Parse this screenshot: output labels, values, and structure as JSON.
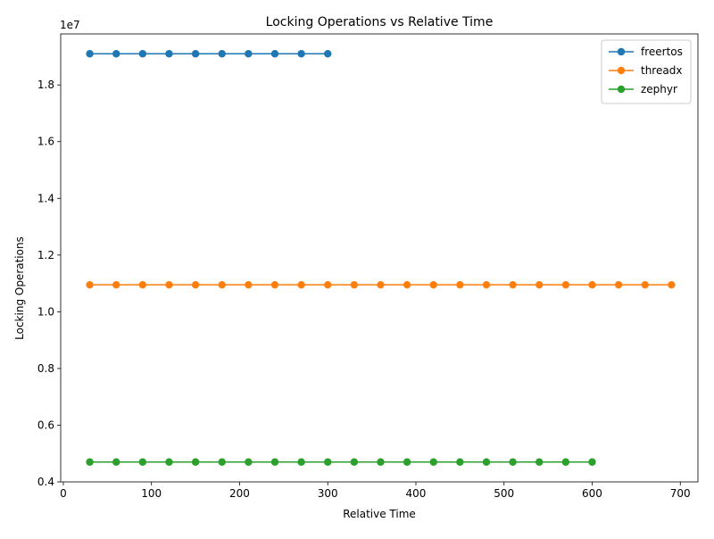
{
  "chart_data": {
    "type": "line",
    "title": "Locking Operations vs Relative Time",
    "xlabel": "Relative Time",
    "ylabel": "Locking Operations",
    "y_offset_label": "1e7",
    "xlim": [
      -3,
      720
    ],
    "ylim": [
      4000000,
      19800000
    ],
    "xticks": [
      0,
      100,
      200,
      300,
      400,
      500,
      600,
      700
    ],
    "yticks": [
      4000000,
      6000000,
      8000000,
      10000000,
      12000000,
      14000000,
      16000000,
      18000000
    ],
    "ytick_labels": [
      "0.4",
      "0.6",
      "0.8",
      "1.0",
      "1.2",
      "1.4",
      "1.6",
      "1.8"
    ],
    "grid": false,
    "legend_position": "top-right",
    "series": [
      {
        "name": "freertos",
        "color": "#1f77b4",
        "x": [
          30,
          60,
          90,
          120,
          150,
          180,
          210,
          240,
          270,
          300
        ],
        "values": [
          19100000,
          19100000,
          19100000,
          19100000,
          19100000,
          19100000,
          19100000,
          19100000,
          19100000,
          19100000
        ]
      },
      {
        "name": "threadx",
        "color": "#ff7f0e",
        "x": [
          30,
          60,
          90,
          120,
          150,
          180,
          210,
          240,
          270,
          300,
          330,
          360,
          390,
          420,
          450,
          480,
          510,
          540,
          570,
          600,
          630,
          660,
          690
        ],
        "values": [
          10950000,
          10950000,
          10950000,
          10950000,
          10950000,
          10950000,
          10950000,
          10950000,
          10950000,
          10950000,
          10950000,
          10950000,
          10950000,
          10950000,
          10950000,
          10950000,
          10950000,
          10950000,
          10950000,
          10950000,
          10950000,
          10950000,
          10950000
        ]
      },
      {
        "name": "zephyr",
        "color": "#2ca02c",
        "x": [
          30,
          60,
          90,
          120,
          150,
          180,
          210,
          240,
          270,
          300,
          330,
          360,
          390,
          420,
          450,
          480,
          510,
          540,
          570,
          600
        ],
        "values": [
          4700000,
          4700000,
          4700000,
          4700000,
          4700000,
          4700000,
          4700000,
          4700000,
          4700000,
          4700000,
          4700000,
          4700000,
          4700000,
          4700000,
          4700000,
          4700000,
          4700000,
          4700000,
          4700000,
          4700000
        ]
      }
    ]
  }
}
